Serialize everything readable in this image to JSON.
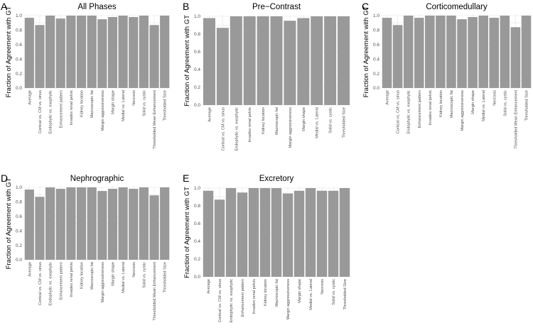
{
  "figure": {
    "bar_color": "#999999",
    "grid_color": "#ebebeb"
  },
  "chart_data": [
    {
      "type": "bar",
      "label": "A",
      "title": "All Phases",
      "xlabel": "",
      "ylabel": "Fraction of Agreement with GT",
      "ylim": [
        0,
        1.0
      ],
      "yticks": [
        "0.0",
        "0.2",
        "0.4",
        "0.6",
        "0.8",
        "1.0"
      ],
      "grid": true,
      "categories": [
        "Average",
        "Cortical vs. CM vs. sinus",
        "Endophytic vs. exophytic",
        "Enhancement pattern",
        "Invades renal pelvis",
        "Kidney location",
        "Macroscopic fat",
        "Margin aggressiveness",
        "Margin shape",
        "Medial vs. Lateral",
        "Necrosis",
        "Solid vs. cystic",
        "Thresholded Mean Enhancement",
        "Thresholded Size"
      ],
      "values": [
        0.97,
        0.87,
        1.0,
        0.96,
        1.0,
        1.0,
        1.0,
        0.95,
        0.98,
        1.0,
        0.98,
        1.0,
        0.87,
        1.0
      ]
    },
    {
      "type": "bar",
      "label": "B",
      "title": "Pre−Contrast",
      "xlabel": "",
      "ylabel": "Fraction of Agreement with GT",
      "ylim": [
        0,
        1.0
      ],
      "yticks": [
        "0.0",
        "0.2",
        "0.4",
        "0.6",
        "0.8",
        "1.0"
      ],
      "grid": true,
      "categories": [
        "Average",
        "Cortical vs. CM vs. sinus",
        "Endophytic vs. exophytic",
        "Invades renal pelvis",
        "Kidney location",
        "Macroscopic fat",
        "Margin aggressiveness",
        "Margin shape",
        "Medial vs. Lateral",
        "Solid vs. cystic",
        "Thresholded Size"
      ],
      "values": [
        0.98,
        0.87,
        1.0,
        1.0,
        1.0,
        1.0,
        0.95,
        0.98,
        1.0,
        1.0,
        1.0
      ]
    },
    {
      "type": "bar",
      "label": "C",
      "title": "Corticomedullary",
      "xlabel": "",
      "ylabel": "Fraction of Agreement with GT",
      "ylim": [
        0,
        1.0
      ],
      "yticks": [
        "0.0",
        "0.2",
        "0.4",
        "0.6",
        "0.8",
        "1.0"
      ],
      "grid": true,
      "categories": [
        "Average",
        "Cortical vs. CM vs. sinus",
        "Endophytic vs. exophytic",
        "Enhancement pattern",
        "Invades renal pelvis",
        "Kidney location",
        "Macroscopic fat",
        "Margin aggressiveness",
        "Margin shape",
        "Medial vs. Lateral",
        "Necrosis",
        "Solid vs. cystic",
        "Thresholded Mean Enhancement",
        "Thresholded Size"
      ],
      "values": [
        0.97,
        0.87,
        1.0,
        0.97,
        1.0,
        1.0,
        1.0,
        0.95,
        0.98,
        1.0,
        0.97,
        1.0,
        0.84,
        1.0
      ]
    },
    {
      "type": "bar",
      "label": "D",
      "title": "Nephrographic",
      "xlabel": "",
      "ylabel": "Fraction of Agreement with GT",
      "ylim": [
        0,
        1.0
      ],
      "yticks": [
        "0.0",
        "0.2",
        "0.4",
        "0.6",
        "0.8",
        "1.0"
      ],
      "grid": true,
      "categories": [
        "Average",
        "Cortical vs. CM vs. sinus",
        "Endophytic vs. exophytic",
        "Enhancement pattern",
        "Invades renal pelvis",
        "Kidney location",
        "Macroscopic fat",
        "Margin aggressiveness",
        "Margin shape",
        "Medial vs. Lateral",
        "Necrosis",
        "Solid vs. cystic",
        "Thresholded Mean Enhancement",
        "Thresholded Size"
      ],
      "values": [
        0.97,
        0.87,
        1.0,
        0.98,
        1.0,
        1.0,
        1.0,
        0.95,
        0.98,
        1.0,
        0.98,
        1.0,
        0.89,
        1.0
      ]
    },
    {
      "type": "bar",
      "label": "E",
      "title": "Excretory",
      "xlabel": "",
      "ylabel": "Fraction of Agreement with GT",
      "ylim": [
        0,
        1.0
      ],
      "yticks": [
        "0.0",
        "0.2",
        "0.4",
        "0.6",
        "0.8",
        "1.0"
      ],
      "grid": true,
      "categories": [
        "Average",
        "Cortical vs. CM vs. sinus",
        "Endophytic vs. exophytic",
        "Enhancement pattern",
        "Invades renal pelvis",
        "Kidney location",
        "Macroscopic fat",
        "Margin aggressiveness",
        "Margin shape",
        "Medial vs. Lateral",
        "Necrosis",
        "Solid vs. cystic",
        "Thresholded Size"
      ],
      "values": [
        0.97,
        0.87,
        1.0,
        0.95,
        1.0,
        1.0,
        1.0,
        0.94,
        0.97,
        1.0,
        0.97,
        0.97,
        1.0
      ]
    }
  ]
}
